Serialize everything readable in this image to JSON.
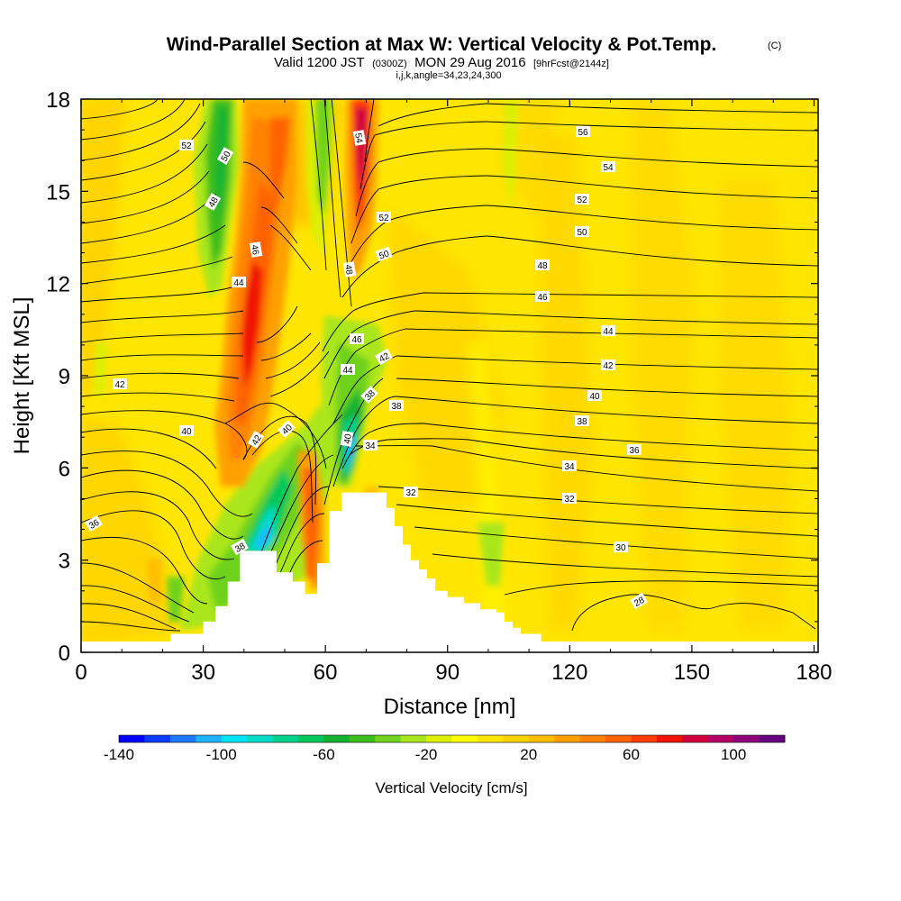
{
  "chart_data": {
    "type": "heatmap",
    "title": "Wind-Parallel Section at Max W: Vertical Velocity & Pot.Temp.",
    "title_mark": "(C)",
    "subtitle_main": "Valid 1200 JST",
    "subtitle_z": "(0300Z)",
    "subtitle_date": "MON 29 Aug 2016",
    "subtitle_fcst": "[9hrFcst@2144z]",
    "subtitle_params": "i,j,k,angle=34,23,24,300",
    "xlabel": "Distance [nm]",
    "ylabel": "Height [Kft MSL]",
    "xlim": [
      0,
      181
    ],
    "ylim": [
      0,
      18
    ],
    "x_ticks": [
      "0",
      "30",
      "60",
      "90",
      "120",
      "150",
      "180"
    ],
    "y_ticks": [
      "0",
      "3",
      "6",
      "9",
      "12",
      "15",
      "18"
    ],
    "colorbar": {
      "label": "Vertical Velocity [cm/s]",
      "tick_labels": [
        "-140",
        "-100",
        "-60",
        "-20",
        "20",
        "60",
        "100"
      ],
      "colors": [
        "#0000ff",
        "#0a3cff",
        "#1e78ff",
        "#1eb4ff",
        "#00e6ff",
        "#00dcc8",
        "#00d28c",
        "#00c85a",
        "#14b432",
        "#3cbe1e",
        "#6ed21e",
        "#aae61e",
        "#dcf000",
        "#ffff00",
        "#ffe600",
        "#ffd200",
        "#ffbe00",
        "#ffa000",
        "#ff8200",
        "#ff6400",
        "#ff3c00",
        "#f01400",
        "#d2003c",
        "#b40064",
        "#8c0078",
        "#640080"
      ]
    },
    "theta_labels": [
      "52",
      "50",
      "48",
      "46",
      "44",
      "42",
      "40",
      "38",
      "36",
      "38",
      "42",
      "40",
      "54",
      "52",
      "50",
      "48",
      "46",
      "44",
      "42",
      "38",
      "40",
      "34",
      "32",
      "56",
      "54",
      "52",
      "50",
      "48",
      "46",
      "44",
      "42",
      "40",
      "38",
      "36",
      "34",
      "32",
      "30",
      "28"
    ],
    "terrain": {
      "x_nm": [
        0,
        22,
        22,
        30,
        30,
        33,
        33,
        36,
        36,
        39,
        39,
        48,
        48,
        52,
        52,
        55,
        55,
        58,
        58,
        61,
        61,
        64,
        64,
        75,
        75,
        77,
        77,
        79,
        79,
        81,
        81,
        83,
        83,
        85,
        85,
        87,
        87,
        90,
        90,
        94,
        94,
        98,
        98,
        102,
        102,
        104,
        104,
        106,
        106,
        108,
        108,
        113,
        113,
        118,
        118,
        181
      ],
      "z_kft": [
        0.3,
        0.3,
        0.6,
        0.6,
        1.0,
        1.0,
        1.5,
        1.5,
        2.3,
        2.3,
        3.3,
        3.3,
        2.6,
        2.6,
        2.3,
        2.3,
        1.9,
        1.9,
        2.9,
        2.9,
        4.6,
        4.6,
        5.2,
        5.2,
        4.7,
        4.7,
        4.1,
        4.1,
        3.5,
        3.5,
        3.0,
        3.0,
        2.7,
        2.7,
        2.4,
        2.4,
        2.0,
        2.0,
        1.8,
        1.8,
        1.6,
        1.6,
        1.4,
        1.4,
        1.3,
        1.3,
        1.0,
        1.0,
        0.8,
        0.8,
        0.6,
        0.6,
        0.3,
        0.3,
        0.3,
        0.3
      ]
    }
  }
}
